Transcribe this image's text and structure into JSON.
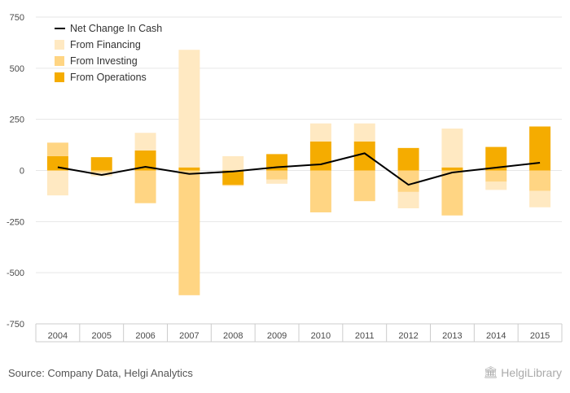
{
  "colors": {
    "net_line": "#000000",
    "financing": "#FFE9C2",
    "investing": "#FFD583",
    "operations": "#F5AC00",
    "grid": "#e6e6e6",
    "axis": "#cccccc"
  },
  "source": "Source: Company Data, Helgi Analytics",
  "logo": {
    "text": "HelgiLibrary",
    "icon": "library-building-icon"
  },
  "chart_data": {
    "type": "bar",
    "stacked": true,
    "categories": [
      "2004",
      "2005",
      "2006",
      "2007",
      "2008",
      "2009",
      "2010",
      "2011",
      "2012",
      "2013",
      "2014",
      "2015"
    ],
    "ylim": [
      -750,
      750
    ],
    "yticks": [
      750,
      500,
      250,
      0,
      -250,
      -500,
      -750
    ],
    "grid": true,
    "legend_position": "top-left",
    "series": [
      {
        "name": "Net Change In Cash",
        "type": "line",
        "values": [
          16,
          -22,
          18,
          -17,
          -5,
          16,
          30,
          84,
          -70,
          -10,
          14,
          38
        ]
      },
      {
        "name": "From Financing",
        "type": "bar",
        "values": [
          -122,
          -18,
          86,
          575,
          70,
          -20,
          88,
          88,
          -80,
          190,
          -40,
          -80
        ]
      },
      {
        "name": "From Investing",
        "type": "bar",
        "values": [
          66,
          -10,
          -160,
          -610,
          -5,
          -45,
          -205,
          -150,
          -105,
          -220,
          -55,
          -100
        ]
      },
      {
        "name": "From Operations",
        "type": "bar",
        "values": [
          70,
          65,
          98,
          15,
          -70,
          80,
          142,
          142,
          110,
          15,
          115,
          215
        ]
      }
    ]
  }
}
